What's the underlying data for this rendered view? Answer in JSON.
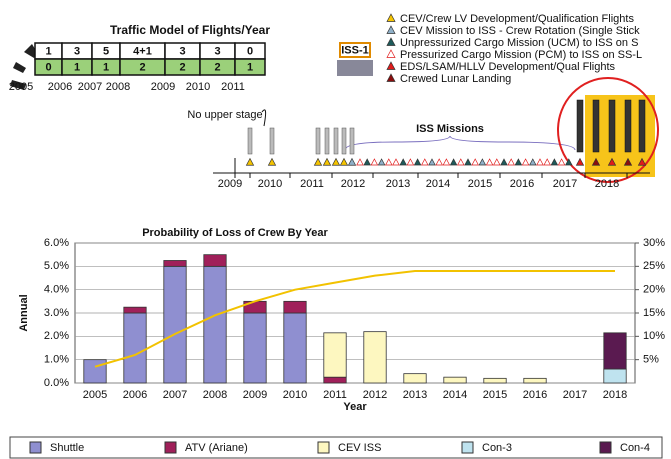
{
  "traffic_model": {
    "title": "Traffic Model of Flights/Year",
    "rows": [
      [
        1,
        3,
        5,
        "4+1",
        3,
        3,
        0
      ],
      [
        0,
        1,
        1,
        2,
        2,
        2,
        1
      ]
    ],
    "years": [
      "2005",
      "2006",
      "2007",
      "2008",
      "2009",
      "2010",
      "2011"
    ],
    "badge": "ISS-1"
  },
  "timeline": {
    "legend": [
      {
        "label": "CEV/Crew LV Development/Qualification Flights",
        "color": "#f5c400"
      },
      {
        "label": "CEV Mission to ISS - Crew Rotation (Single Stick",
        "color": "#8fb0c8"
      },
      {
        "label": "Unpressurized Cargo Mission (UCM) to ISS on S",
        "color": "#1e5a5a"
      },
      {
        "label": "Pressurized Cargo Mission (PCM) to ISS on SS-L",
        "color": "#ffffff"
      },
      {
        "label": "EDS/LSAM/HLLV Development/Qual Flights",
        "color": "#e01b1b"
      },
      {
        "label": "Crewed Lunar Landing",
        "color": "#8a0e0e"
      }
    ],
    "note": "No upper stage",
    "label": "ISS Missions",
    "years": [
      "2009",
      "2010",
      "2011",
      "2012",
      "2013",
      "2014",
      "2015",
      "2016",
      "2017",
      "2018"
    ]
  },
  "chart_data": {
    "type": "bar",
    "stacked": true,
    "title": "Probability of Loss of Crew By Year",
    "y_label": "Annual",
    "x_label": "Year",
    "categories": [
      "2005",
      "2006",
      "2007",
      "2008",
      "2009",
      "2010",
      "2011",
      "2012",
      "2013",
      "2014",
      "2015",
      "2016",
      "2017",
      "2018"
    ],
    "series": [
      {
        "name": "Shuttle",
        "color": "#8f8fd0",
        "values": [
          1.0,
          3.0,
          5.0,
          5.0,
          3.0,
          3.0,
          0,
          0,
          0,
          0,
          0,
          0,
          0,
          0
        ]
      },
      {
        "name": "ATV (Ariane)",
        "color": "#a0205a",
        "values": [
          0,
          0.25,
          0.25,
          0.5,
          0.5,
          0.5,
          0.25,
          0,
          0,
          0,
          0,
          0,
          0,
          0
        ]
      },
      {
        "name": "CEV ISS",
        "color": "#fdf7c0",
        "values": [
          0,
          0,
          0,
          0,
          0,
          0,
          1.9,
          2.2,
          0.4,
          0.25,
          0.2,
          0.2,
          0,
          0
        ]
      },
      {
        "name": "Con-3",
        "color": "#bfe3ef",
        "values": [
          0,
          0,
          0,
          0,
          0,
          0,
          0,
          0,
          0,
          0,
          0,
          0,
          0,
          0.6
        ]
      },
      {
        "name": "Con-4",
        "color": "#5a1a50",
        "values": [
          0,
          0,
          0,
          0,
          0,
          0,
          0,
          0,
          0,
          0,
          0,
          0,
          0,
          1.55
        ]
      }
    ],
    "line": {
      "color": "#f2c200",
      "axis": "y2",
      "values": [
        3.5,
        6,
        10.5,
        14.5,
        17.5,
        20,
        21.5,
        23,
        24,
        24,
        24,
        24,
        24,
        24
      ]
    },
    "ylim": [
      0,
      6
    ],
    "yticks": [
      {
        "value": 0,
        "label": "0.0%"
      },
      {
        "value": 1,
        "label": "1.0%"
      },
      {
        "value": 2,
        "label": "2.0%"
      },
      {
        "value": 3,
        "label": "3.0%"
      },
      {
        "value": 4,
        "label": "4.0%"
      },
      {
        "value": 5,
        "label": "5.0%"
      },
      {
        "value": 6,
        "label": "6.0%"
      }
    ],
    "y2lim": [
      0,
      30
    ],
    "y2ticks": [
      {
        "value": 5,
        "label": "5%"
      },
      {
        "value": 10,
        "label": "10%"
      },
      {
        "value": 15,
        "label": "15%"
      },
      {
        "value": 20,
        "label": "20%"
      },
      {
        "value": 25,
        "label": "25%"
      },
      {
        "value": 30,
        "label": "30%"
      }
    ],
    "grid": true
  }
}
